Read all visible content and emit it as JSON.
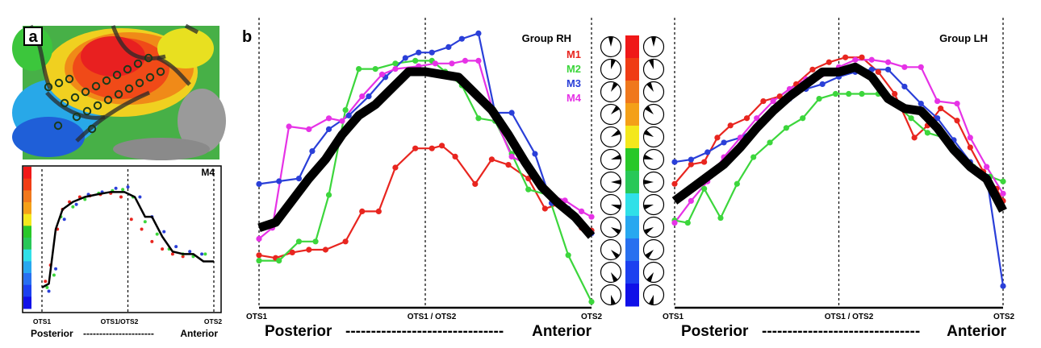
{
  "panel_a": {
    "label": "a",
    "inset_label": "M4",
    "x_labels": [
      "OTS1",
      "OTS1/OTS2",
      "OTS2"
    ],
    "direction_left": "Posterior",
    "direction_dashes": "----------------------",
    "direction_right": "Anterior"
  },
  "panel_b": {
    "label": "b",
    "direction_left": "Posterior",
    "direction_dashes": "-------------------------------",
    "direction_right": "Anterior"
  },
  "colors": {
    "M1": "#e8251f",
    "M2": "#3cd63c",
    "M3": "#2a3fd8",
    "M4": "#e632e6",
    "mean": "#000000"
  },
  "colorbar": [
    "#f01818",
    "#f03c14",
    "#f0781c",
    "#f4a018",
    "#f4e81c",
    "#28c828",
    "#28c858",
    "#30e0e8",
    "#28a8f0",
    "#2870f0",
    "#1c40f0",
    "#1010e8"
  ],
  "chart_data": [
    {
      "type": "scatter",
      "title": "M4",
      "x_labels": [
        "OTS1",
        "OTS1/OTS2",
        "OTS2"
      ],
      "ylim": [
        0,
        100
      ],
      "series": [
        {
          "name": "",
          "color": "#e8251f",
          "x": [
            0.02,
            0.05,
            0.09,
            0.12,
            0.16,
            0.22,
            0.28,
            0.34,
            0.4,
            0.46,
            0.52,
            0.58,
            0.64,
            0.7,
            0.76,
            0.82
          ],
          "y": [
            20,
            33,
            62,
            78,
            84,
            88,
            89,
            90,
            91,
            88,
            70,
            62,
            52,
            46,
            42,
            40
          ]
        },
        {
          "name": "",
          "color": "#3cd63c",
          "x": [
            0.03,
            0.07,
            0.11,
            0.18,
            0.25,
            0.33,
            0.41,
            0.47,
            0.53,
            0.6,
            0.67,
            0.74,
            0.82,
            0.88,
            0.95
          ],
          "y": [
            15,
            25,
            72,
            80,
            86,
            91,
            93,
            94,
            88,
            68,
            58,
            46,
            42,
            40,
            42
          ]
        },
        {
          "name": "",
          "color": "#2a3fd8",
          "x": [
            0.04,
            0.08,
            0.13,
            0.2,
            0.27,
            0.35,
            0.43,
            0.5,
            0.57,
            0.64,
            0.71,
            0.78,
            0.86,
            0.93
          ],
          "y": [
            12,
            30,
            70,
            82,
            90,
            92,
            95,
            96,
            88,
            72,
            60,
            48,
            44,
            42
          ]
        }
      ],
      "mean_line": {
        "x": [
          0.0,
          0.04,
          0.08,
          0.12,
          0.18,
          0.25,
          0.32,
          0.4,
          0.48,
          0.54,
          0.6,
          0.64,
          0.7,
          0.76,
          0.82,
          0.88,
          0.94,
          1.0
        ],
        "y": [
          15,
          18,
          62,
          78,
          84,
          88,
          90,
          92,
          92,
          88,
          72,
          72,
          56,
          44,
          42,
          42,
          36,
          36
        ]
      }
    },
    {
      "type": "line",
      "title": "Group RH",
      "x_labels": [
        "OTS1",
        "OTS1 / OTS2",
        "OTS2"
      ],
      "ylim": [
        0,
        100
      ],
      "series": [
        {
          "name": "M1",
          "color": "#e8251f",
          "x": [
            0,
            0.05,
            0.1,
            0.15,
            0.2,
            0.26,
            0.31,
            0.36,
            0.41,
            0.47,
            0.52,
            0.55,
            0.59,
            0.65,
            0.7,
            0.75,
            0.81,
            0.86,
            0.91,
            0.97,
            1.0
          ],
          "y": [
            18,
            17,
            19,
            20,
            20,
            23,
            34,
            34,
            50,
            57,
            57,
            58,
            54,
            44,
            53,
            51,
            46,
            35,
            37,
            28,
            27
          ]
        },
        {
          "name": "M2",
          "color": "#3cd63c",
          "x": [
            0,
            0.06,
            0.12,
            0.17,
            0.21,
            0.26,
            0.3,
            0.35,
            0.41,
            0.47,
            0.52,
            0.56,
            0.61,
            0.66,
            0.71,
            0.76,
            0.81,
            0.87,
            0.93,
            1.0
          ],
          "y": [
            16,
            16,
            23,
            23,
            40,
            71,
            86,
            86,
            88,
            89,
            89,
            85,
            80,
            68,
            67,
            55,
            42,
            40,
            18,
            1
          ]
        },
        {
          "name": "M3",
          "color": "#2a3fd8",
          "x": [
            0,
            0.06,
            0.12,
            0.16,
            0.21,
            0.27,
            0.33,
            0.38,
            0.44,
            0.48,
            0.52,
            0.57,
            0.61,
            0.66,
            0.71,
            0.76,
            0.83,
            0.88,
            0.93,
            1.0
          ],
          "y": [
            44,
            45,
            46,
            56,
            64,
            69,
            76,
            83,
            90,
            92,
            92,
            94,
            97,
            99,
            70,
            70,
            55,
            37,
            35,
            26
          ]
        },
        {
          "name": "M4",
          "color": "#e632e6",
          "x": [
            0,
            0.04,
            0.09,
            0.15,
            0.21,
            0.25,
            0.31,
            0.37,
            0.41,
            0.48,
            0.53,
            0.58,
            0.62,
            0.66,
            0.71,
            0.76,
            0.81,
            0.87,
            0.92,
            0.97,
            1.0
          ],
          "y": [
            24,
            28,
            65,
            64,
            68,
            67,
            76,
            84,
            86,
            87,
            88,
            88,
            89,
            89,
            68,
            54,
            51,
            40,
            38,
            34,
            32
          ]
        }
      ],
      "mean_line": {
        "x": [
          0,
          0.05,
          0.1,
          0.15,
          0.2,
          0.25,
          0.3,
          0.35,
          0.4,
          0.45,
          0.5,
          0.55,
          0.6,
          0.65,
          0.7,
          0.75,
          0.8,
          0.85,
          0.9,
          0.95,
          1.0
        ],
        "y": [
          28,
          30,
          38,
          46,
          53,
          62,
          69,
          73,
          79,
          85,
          85,
          84,
          83,
          77,
          71,
          62,
          52,
          43,
          37,
          32,
          25
        ]
      }
    },
    {
      "type": "line",
      "title": "Group LH",
      "x_labels": [
        "OTS1",
        "OTS1 / OTS2",
        "OTS2"
      ],
      "ylim": [
        0,
        100
      ],
      "series": [
        {
          "name": "M1",
          "color": "#e8251f",
          "x": [
            0,
            0.05,
            0.09,
            0.13,
            0.17,
            0.22,
            0.27,
            0.32,
            0.37,
            0.42,
            0.47,
            0.52,
            0.57,
            0.62,
            0.67,
            0.73,
            0.77,
            0.81,
            0.86,
            0.9,
            0.94,
            0.98,
            1.0
          ],
          "y": [
            37,
            45,
            46,
            56,
            61,
            64,
            71,
            73,
            78,
            84,
            87,
            89,
            89,
            83,
            74,
            56,
            61,
            68,
            63,
            52,
            42,
            35,
            30
          ]
        },
        {
          "name": "M2",
          "color": "#3cd63c",
          "x": [
            0,
            0.04,
            0.09,
            0.14,
            0.19,
            0.24,
            0.29,
            0.34,
            0.39,
            0.44,
            0.49,
            0.53,
            0.57,
            0.62,
            0.67,
            0.72,
            0.77,
            0.82,
            0.87,
            0.91,
            0.96,
            1.0
          ],
          "y": [
            22,
            21,
            35,
            23,
            37,
            48,
            54,
            60,
            64,
            72,
            74,
            74,
            74,
            74,
            70,
            64,
            58,
            56,
            48,
            44,
            40,
            38
          ]
        },
        {
          "name": "M3",
          "color": "#2a3fd8",
          "x": [
            0,
            0.05,
            0.1,
            0.15,
            0.2,
            0.25,
            0.3,
            0.35,
            0.4,
            0.45,
            0.5,
            0.55,
            0.6,
            0.65,
            0.7,
            0.75,
            0.8,
            0.85,
            0.9,
            0.95,
            1.0
          ],
          "y": [
            46,
            47,
            50,
            54,
            56,
            60,
            68,
            72,
            76,
            78,
            81,
            83,
            84,
            84,
            77,
            70,
            64,
            55,
            46,
            40,
            -5
          ]
        },
        {
          "name": "M4",
          "color": "#e632e6",
          "x": [
            0,
            0.05,
            0.1,
            0.15,
            0.2,
            0.25,
            0.3,
            0.35,
            0.4,
            0.45,
            0.5,
            0.55,
            0.6,
            0.65,
            0.7,
            0.75,
            0.8,
            0.86,
            0.9,
            0.95,
            1.0
          ],
          "y": [
            21,
            30,
            38,
            48,
            56,
            64,
            71,
            76,
            80,
            82,
            85,
            88,
            88,
            87,
            85,
            85,
            71,
            70,
            56,
            44,
            33
          ]
        }
      ],
      "mean_line": {
        "x": [
          0,
          0.05,
          0.1,
          0.15,
          0.2,
          0.25,
          0.3,
          0.35,
          0.4,
          0.45,
          0.5,
          0.55,
          0.6,
          0.65,
          0.7,
          0.75,
          0.8,
          0.85,
          0.9,
          0.95,
          1.0
        ],
        "y": [
          30,
          35,
          40,
          45,
          52,
          60,
          67,
          73,
          78,
          83,
          83,
          85,
          81,
          72,
          68,
          67,
          60,
          51,
          44,
          39,
          26
        ]
      }
    }
  ]
}
